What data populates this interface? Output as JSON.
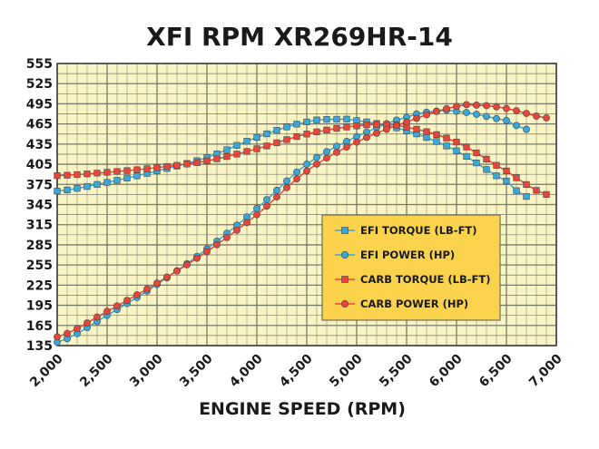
{
  "chart_data": {
    "type": "line",
    "title": "XFI RPM XR269HR-14",
    "xlabel": "ENGINE SPEED (RPM)",
    "ylabel": "",
    "xlim": [
      2000,
      7000
    ],
    "ylim": [
      135,
      555
    ],
    "x_tick_labels": [
      "2,000",
      "2,500",
      "3,000",
      "3,500",
      "4,000",
      "4,500",
      "5,000",
      "5,500",
      "6,000",
      "6,500",
      "7,000"
    ],
    "y_tick_labels": [
      "135",
      "165",
      "195",
      "225",
      "255",
      "285",
      "315",
      "345",
      "375",
      "405",
      "435",
      "465",
      "495",
      "525",
      "555"
    ],
    "grid": true,
    "legend_position": "center-right",
    "background_color": "#f8f4c4",
    "grid_color": "#7a7a6a",
    "legend_box_color": "#fbd24c",
    "series": [
      {
        "name": "EFI TORQUE (LB-FT)",
        "marker": "square",
        "color": "#3aa7d9",
        "x": [
          2000,
          2500,
          3000,
          3500,
          4000,
          4500,
          4800,
          5000,
          5500,
          6000,
          6500,
          6700
        ],
        "y": [
          365,
          378,
          395,
          415,
          445,
          468,
          472,
          470,
          455,
          425,
          380,
          357
        ]
      },
      {
        "name": "EFI POWER (HP)",
        "marker": "circle",
        "color": "#3aa7d9",
        "x": [
          2000,
          2500,
          3000,
          3500,
          4000,
          4500,
          5000,
          5500,
          5800,
          6000,
          6500,
          6700
        ],
        "y": [
          140,
          180,
          226,
          279,
          339,
          405,
          446,
          475,
          484,
          484,
          470,
          457
        ]
      },
      {
        "name": "CARB TORQUE (LB-FT)",
        "marker": "square",
        "color": "#e8453a",
        "x": [
          2000,
          2500,
          3000,
          3500,
          4000,
          4500,
          5000,
          5300,
          5500,
          6000,
          6500,
          6900
        ],
        "y": [
          388,
          393,
          400,
          410,
          428,
          450,
          462,
          464,
          460,
          438,
          395,
          360
        ]
      },
      {
        "name": "CARB POWER (HP)",
        "marker": "circle",
        "color": "#e8453a",
        "x": [
          2000,
          2500,
          3000,
          3500,
          4000,
          4500,
          5000,
          5500,
          6000,
          6200,
          6500,
          6900
        ],
        "y": [
          148,
          186,
          228,
          275,
          330,
          395,
          438,
          468,
          491,
          493,
          488,
          474
        ]
      }
    ]
  }
}
